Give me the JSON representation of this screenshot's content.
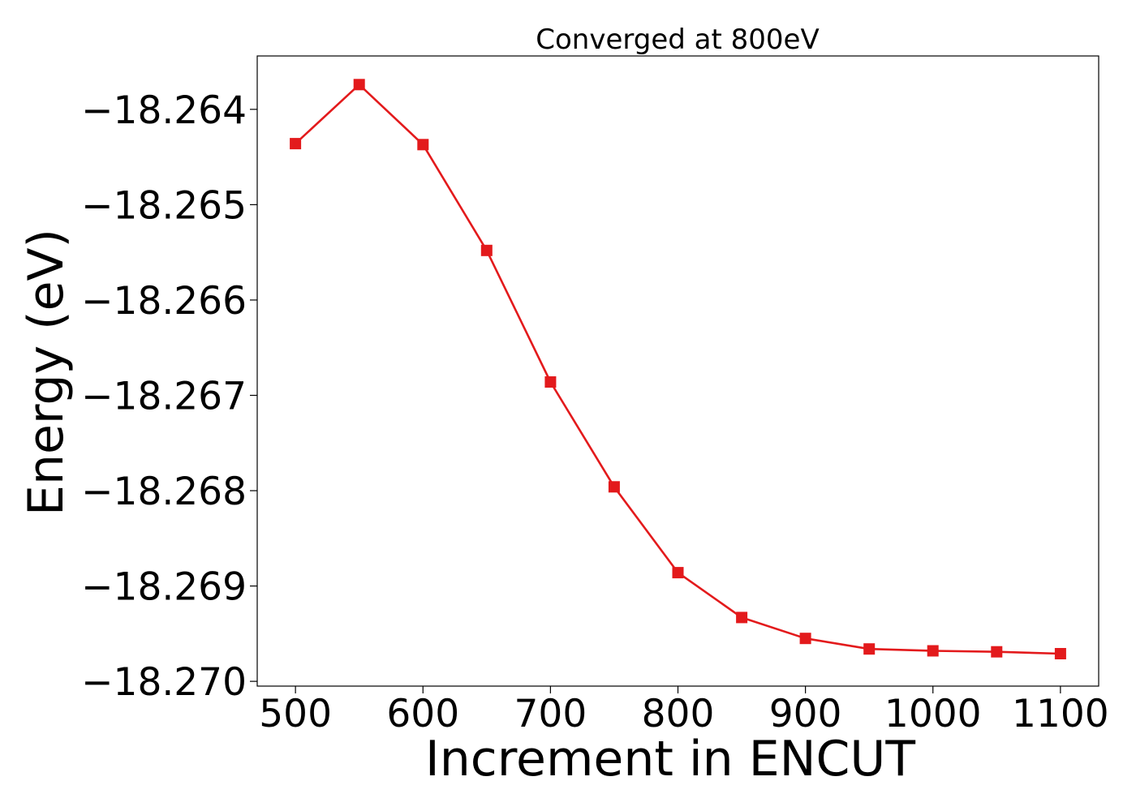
{
  "chart_data": {
    "type": "line",
    "title": "Converged at 800eV",
    "xlabel": "Increment in ENCUT",
    "ylabel": "Energy (eV)",
    "x": [
      500,
      550,
      600,
      650,
      700,
      750,
      800,
      850,
      900,
      950,
      1000,
      1050,
      1100
    ],
    "series": [
      {
        "name": "Energy",
        "color": "#e31a1c",
        "marker": "square",
        "values": [
          -18.26436,
          -18.26374,
          -18.26437,
          -18.26548,
          -18.26686,
          -18.26796,
          -18.26886,
          -18.26933,
          -18.26955,
          -18.26966,
          -18.26968,
          -18.26969,
          -18.26971
        ]
      }
    ],
    "xlim": [
      470,
      1130
    ],
    "ylim": [
      -18.27005,
      -18.26344
    ],
    "xticks": [
      500,
      600,
      700,
      800,
      900,
      1000,
      1100
    ],
    "xtick_labels": [
      "500",
      "600",
      "700",
      "800",
      "900",
      "1000",
      "1100"
    ],
    "yticks": [
      -18.264,
      -18.265,
      -18.266,
      -18.267,
      -18.268,
      -18.269,
      -18.27
    ],
    "ytick_labels": [
      "−18.264",
      "−18.265",
      "−18.266",
      "−18.267",
      "−18.268",
      "−18.269",
      "−18.270"
    ],
    "grid": false,
    "legend": "none"
  }
}
